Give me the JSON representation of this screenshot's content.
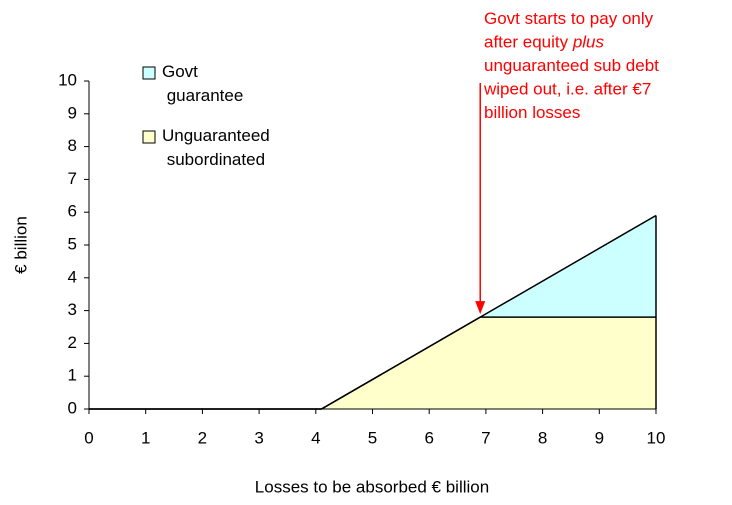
{
  "chart_data": {
    "type": "stacked_area",
    "x": [
      0,
      4.1,
      6.9,
      10
    ],
    "series": [
      {
        "name": "Govt guarantee",
        "color": "#ccffff",
        "values": [
          0,
          0,
          0,
          3.1
        ]
      },
      {
        "name": "Unguaranteed subordinated",
        "color": "#ffffcc",
        "values": [
          0,
          0,
          2.8,
          2.8
        ]
      }
    ],
    "stack_order": "reverse",
    "xlim": [
      0,
      10
    ],
    "xticks": [
      0,
      1,
      2,
      3,
      4,
      5,
      6,
      7,
      8,
      9,
      10
    ],
    "ylim": [
      0,
      10
    ],
    "yticks": [
      0,
      1,
      2,
      3,
      4,
      5,
      6,
      7,
      8,
      9,
      10
    ],
    "xlabel": "Losses to be absorbed € billion",
    "ylabel": "€ billion",
    "annotation": {
      "color": "#ff0000",
      "lines": [
        [
          {
            "text": "Govt starts to pay only"
          }
        ],
        [
          {
            "text": "after equity "
          },
          {
            "text": "plus",
            "italic": true
          }
        ],
        [
          {
            "text": "unguaranteed sub debt"
          }
        ],
        [
          {
            "text": "wiped out, i.e. after €7"
          }
        ],
        [
          {
            "text": "billion losses"
          }
        ]
      ]
    }
  }
}
